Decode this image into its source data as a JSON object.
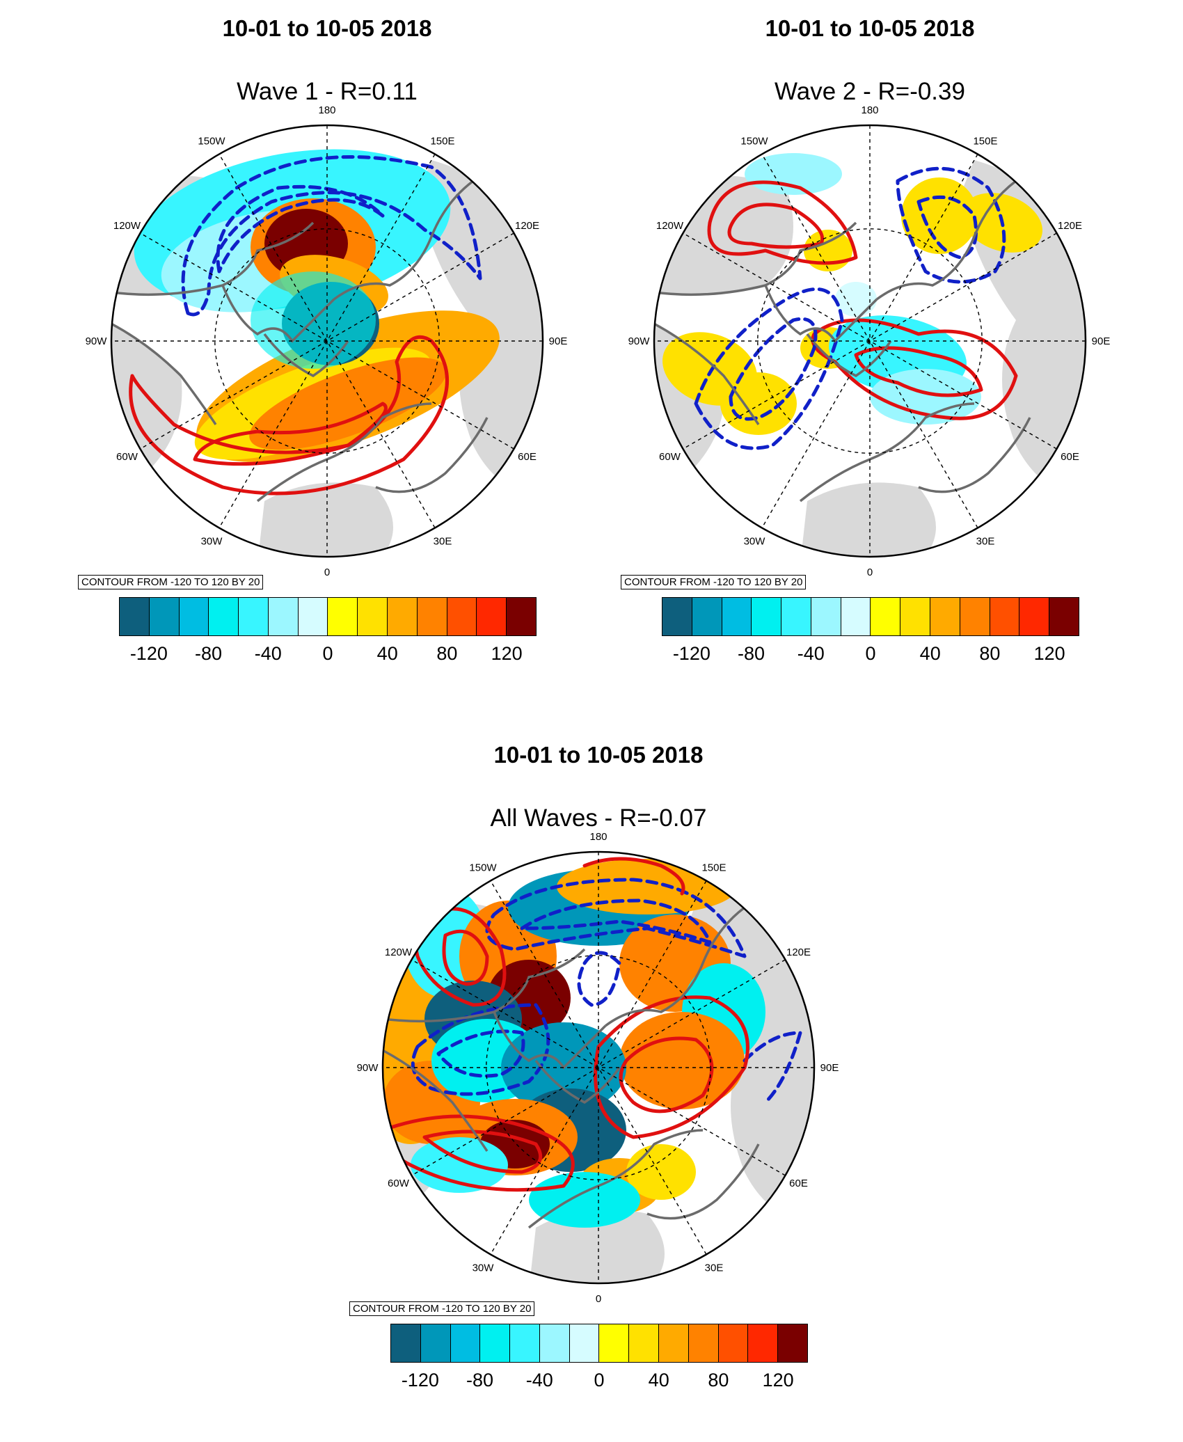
{
  "panels": [
    {
      "id": "wave1",
      "date_title": "10-01 to 10-05 2018",
      "title": "Wave 1 - R=0.11",
      "contour_note": "CONTOUR FROM -120 TO 120 BY 20"
    },
    {
      "id": "wave2",
      "date_title": "10-01 to 10-05 2018",
      "title": "Wave 2 - R=-0.39",
      "contour_note": "CONTOUR FROM -120 TO 120 BY 20"
    },
    {
      "id": "allwaves",
      "date_title": "10-01 to 10-05 2018",
      "title": "All Waves - R=-0.07",
      "contour_note": "CONTOUR FROM -120 TO 120 BY 20"
    }
  ],
  "lon_labels": [
    "180",
    "150E",
    "120E",
    "90E",
    "60E",
    "30E",
    "0",
    "30W",
    "60W",
    "90W",
    "120W",
    "150W"
  ],
  "colorbar": {
    "colors": [
      "#0e5f7d",
      "#0097b9",
      "#00bde2",
      "#00f0f0",
      "#38f5ff",
      "#9cf7ff",
      "#d6fcff",
      "#ffff00",
      "#ffe100",
      "#ffaa00",
      "#ff8200",
      "#ff5000",
      "#ff2800",
      "#7a0000"
    ],
    "tick_labels": [
      "-120",
      "-80",
      "-40",
      "0",
      "40",
      "80",
      "120"
    ]
  },
  "colors": {
    "land": "#d9d9d9",
    "coast": "#6b6b6b",
    "positive_contour": "#e01010",
    "negative_contour": "#1020c8"
  }
}
